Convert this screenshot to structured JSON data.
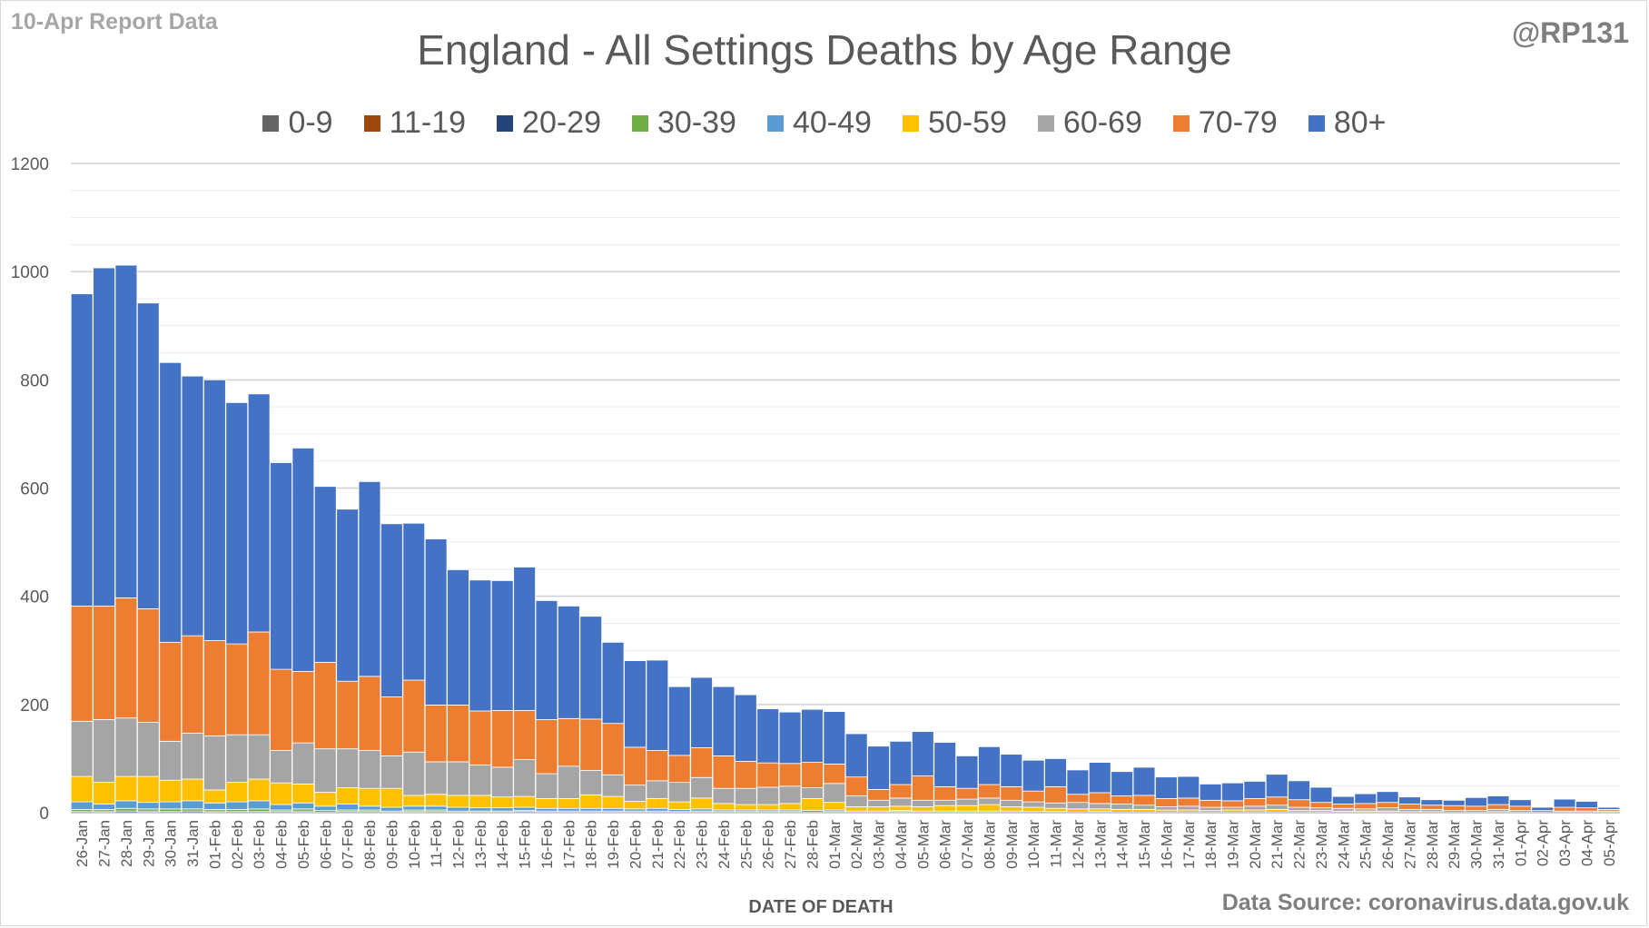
{
  "report_note": "10-Apr Report Data",
  "handle": "@RP131",
  "source_note": "Data Source: coronavirus.data.gov.uk",
  "chart_data": {
    "type": "bar",
    "stacked": true,
    "title": "England - All Settings Deaths by Age Range",
    "xlabel": "DATE OF DEATH",
    "ylabel": "",
    "ylim": [
      0,
      1200
    ],
    "yticks": [
      0,
      200,
      400,
      600,
      800,
      1000,
      1200
    ],
    "grid": true,
    "legend_position": "top",
    "categories": [
      "26-Jan",
      "27-Jan",
      "28-Jan",
      "29-Jan",
      "30-Jan",
      "31-Jan",
      "01-Feb",
      "02-Feb",
      "03-Feb",
      "04-Feb",
      "05-Feb",
      "06-Feb",
      "07-Feb",
      "08-Feb",
      "09-Feb",
      "10-Feb",
      "11-Feb",
      "12-Feb",
      "13-Feb",
      "14-Feb",
      "15-Feb",
      "16-Feb",
      "17-Feb",
      "18-Feb",
      "19-Feb",
      "20-Feb",
      "21-Feb",
      "22-Feb",
      "23-Feb",
      "24-Feb",
      "25-Feb",
      "26-Feb",
      "27-Feb",
      "28-Feb",
      "01-Mar",
      "02-Mar",
      "03-Mar",
      "04-Mar",
      "05-Mar",
      "06-Mar",
      "07-Mar",
      "08-Mar",
      "09-Mar",
      "10-Mar",
      "11-Mar",
      "12-Mar",
      "13-Mar",
      "14-Mar",
      "15-Mar",
      "16-Mar",
      "17-Mar",
      "18-Mar",
      "19-Mar",
      "20-Mar",
      "21-Mar",
      "22-Mar",
      "23-Mar",
      "24-Mar",
      "25-Mar",
      "26-Mar",
      "27-Mar",
      "28-Mar",
      "29-Mar",
      "30-Mar",
      "31-Mar",
      "01-Apr",
      "02-Apr",
      "03-Apr",
      "04-Apr",
      "05-Apr"
    ],
    "series": [
      {
        "name": "0-9",
        "color": "#636363",
        "values": [
          0,
          0,
          0,
          0,
          0,
          0,
          0,
          0,
          0,
          0,
          0,
          0,
          0,
          0,
          0,
          0,
          0,
          0,
          0,
          0,
          0,
          0,
          0,
          0,
          0,
          0,
          0,
          0,
          0,
          0,
          0,
          0,
          0,
          0,
          0,
          0,
          0,
          0,
          0,
          0,
          0,
          0,
          0,
          0,
          0,
          0,
          0,
          0,
          0,
          0,
          0,
          0,
          0,
          0,
          0,
          0,
          0,
          0,
          0,
          0,
          0,
          0,
          0,
          0,
          0,
          0,
          0,
          0,
          0,
          0
        ]
      },
      {
        "name": "11-19",
        "color": "#9e480e",
        "values": [
          0,
          1,
          0,
          1,
          0,
          0,
          1,
          0,
          0,
          0,
          1,
          0,
          0,
          0,
          0,
          1,
          0,
          0,
          0,
          0,
          0,
          0,
          0,
          0,
          0,
          0,
          0,
          0,
          0,
          0,
          0,
          0,
          0,
          0,
          0,
          0,
          0,
          0,
          0,
          0,
          0,
          0,
          0,
          0,
          0,
          0,
          0,
          0,
          0,
          0,
          0,
          0,
          0,
          0,
          0,
          0,
          0,
          0,
          0,
          0,
          0,
          0,
          0,
          0,
          0,
          0,
          0,
          0,
          0,
          0
        ]
      },
      {
        "name": "20-29",
        "color": "#264478",
        "values": [
          2,
          2,
          3,
          2,
          2,
          3,
          2,
          2,
          2,
          2,
          2,
          1,
          2,
          2,
          1,
          1,
          2,
          1,
          1,
          1,
          2,
          1,
          1,
          1,
          1,
          1,
          1,
          1,
          1,
          1,
          1,
          1,
          1,
          0,
          1,
          0,
          0,
          1,
          0,
          0,
          0,
          0,
          0,
          0,
          0,
          0,
          0,
          0,
          0,
          0,
          0,
          0,
          0,
          0,
          0,
          0,
          0,
          0,
          0,
          0,
          0,
          0,
          0,
          0,
          0,
          0,
          0,
          0,
          0,
          0
        ]
      },
      {
        "name": "30-39",
        "color": "#70ad47",
        "values": [
          4,
          3,
          5,
          4,
          5,
          4,
          3,
          4,
          5,
          3,
          4,
          3,
          3,
          3,
          2,
          3,
          3,
          2,
          2,
          2,
          2,
          2,
          2,
          2,
          2,
          2,
          2,
          1,
          2,
          1,
          1,
          1,
          1,
          1,
          1,
          1,
          1,
          1,
          1,
          1,
          1,
          1,
          1,
          0,
          1,
          0,
          1,
          0,
          0,
          0,
          0,
          0,
          0,
          0,
          0,
          0,
          0,
          0,
          0,
          0,
          0,
          0,
          0,
          0,
          0,
          0,
          0,
          0,
          0,
          0
        ]
      },
      {
        "name": "40-49",
        "color": "#5b9bd5",
        "values": [
          14,
          10,
          14,
          12,
          13,
          15,
          12,
          14,
          15,
          10,
          11,
          8,
          11,
          7,
          7,
          7,
          7,
          7,
          6,
          6,
          6,
          5,
          5,
          5,
          5,
          4,
          5,
          4,
          4,
          3,
          3,
          3,
          3,
          3,
          3,
          2,
          2,
          2,
          2,
          2,
          2,
          2,
          2,
          2,
          1,
          1,
          1,
          1,
          1,
          1,
          1,
          1,
          1,
          1,
          1,
          1,
          1,
          1,
          1,
          1,
          0,
          0,
          0,
          0,
          0,
          0,
          0,
          0,
          0,
          0
        ]
      },
      {
        "name": "50-59",
        "color": "#ffc000",
        "values": [
          47,
          40,
          45,
          48,
          40,
          40,
          24,
          36,
          40,
          40,
          35,
          26,
          30,
          33,
          35,
          20,
          22,
          22,
          23,
          20,
          20,
          18,
          18,
          25,
          22,
          14,
          18,
          14,
          20,
          12,
          10,
          10,
          12,
          22,
          14,
          8,
          8,
          8,
          8,
          10,
          10,
          12,
          8,
          8,
          6,
          6,
          5,
          5,
          5,
          4,
          4,
          3,
          4,
          4,
          5,
          3,
          3,
          2,
          2,
          2,
          2,
          2,
          1,
          1,
          2,
          1,
          0,
          1,
          1,
          1
        ]
      },
      {
        "name": "60-69",
        "color": "#a5a5a5",
        "values": [
          102,
          116,
          108,
          100,
          72,
          85,
          100,
          88,
          82,
          60,
          76,
          80,
          72,
          70,
          60,
          80,
          60,
          62,
          56,
          55,
          68,
          46,
          60,
          45,
          40,
          30,
          33,
          36,
          38,
          28,
          30,
          32,
          32,
          20,
          35,
          20,
          12,
          15,
          12,
          10,
          12,
          12,
          12,
          10,
          10,
          12,
          10,
          10,
          8,
          6,
          7,
          6,
          5,
          7,
          8,
          6,
          5,
          5,
          4,
          6,
          4,
          4,
          3,
          3,
          4,
          3,
          1,
          2,
          2,
          2
        ]
      },
      {
        "name": "70-79",
        "color": "#ed7d31",
        "values": [
          213,
          210,
          222,
          210,
          183,
          180,
          176,
          168,
          190,
          150,
          132,
          160,
          125,
          137,
          109,
          133,
          105,
          105,
          100,
          105,
          91,
          100,
          88,
          95,
          95,
          70,
          56,
          50,
          55,
          60,
          50,
          45,
          42,
          47,
          36,
          35,
          20,
          25,
          45,
          25,
          20,
          25,
          25,
          20,
          30,
          15,
          20,
          15,
          18,
          15,
          15,
          13,
          12,
          14,
          15,
          14,
          10,
          8,
          10,
          10,
          10,
          8,
          9,
          8,
          9,
          8,
          3,
          7,
          6,
          3
        ]
      },
      {
        "name": "80+",
        "color": "#4472c4",
        "values": [
          577,
          625,
          615,
          565,
          517,
          480,
          482,
          446,
          440,
          382,
          413,
          325,
          318,
          360,
          320,
          290,
          307,
          250,
          242,
          240,
          265,
          220,
          208,
          190,
          150,
          160,
          167,
          127,
          130,
          128,
          123,
          100,
          95,
          98,
          97,
          80,
          80,
          80,
          82,
          82,
          60,
          70,
          60,
          57,
          52,
          45,
          56,
          45,
          52,
          40,
          40,
          30,
          33,
          32,
          42,
          35,
          28,
          14,
          18,
          20,
          13,
          10,
          10,
          16,
          16,
          12,
          6,
          15,
          12,
          4
        ]
      }
    ]
  }
}
